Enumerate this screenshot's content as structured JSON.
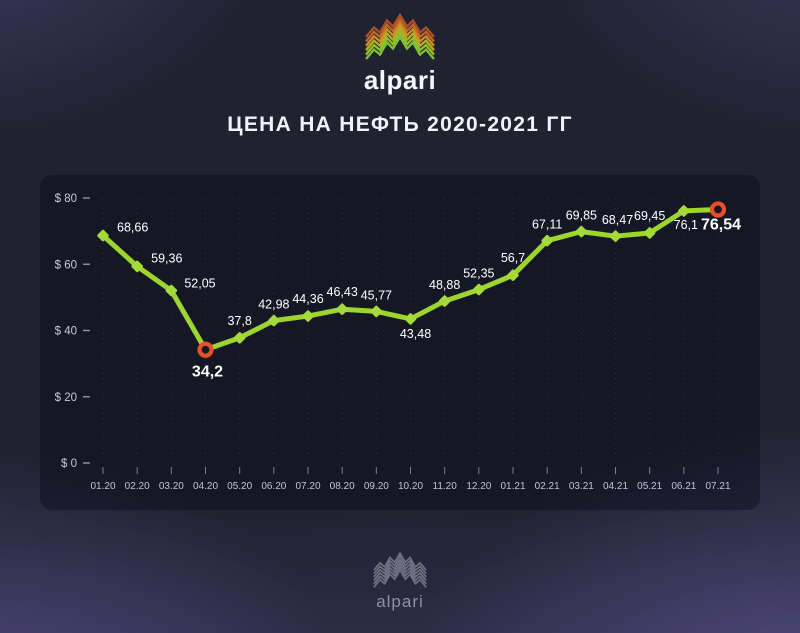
{
  "header": {
    "brand": "alpari"
  },
  "title": "ЦЕНА НА НЕФТЬ 2020-2021 ГГ",
  "footer": {
    "brand": "alpari"
  },
  "brand_colors": {
    "stripes": [
      "#a84e2a",
      "#bf6727",
      "#cb8f26",
      "#b7ad2b",
      "#95bd30",
      "#7cc433"
    ],
    "footer_stripes": [
      "#7c8090",
      "#7c8090",
      "#7c8090",
      "#7c8090",
      "#7c8090",
      "#7c8090"
    ],
    "text": "#f5f6f9",
    "footer_text": "#8d91a0"
  },
  "chart_data": {
    "type": "line",
    "title": "ЦЕНА НА НЕФТЬ 2020-2021 ГГ",
    "xlabel": "",
    "ylabel": "",
    "x": [
      "01.20",
      "02.20",
      "03.20",
      "04.20",
      "05.20",
      "06.20",
      "07.20",
      "08.20",
      "09.20",
      "10.20",
      "11.20",
      "12.20",
      "01.21",
      "02.21",
      "03.21",
      "04.21",
      "05.21",
      "06.21",
      "07.21"
    ],
    "values": [
      68.66,
      59.36,
      52.05,
      34.2,
      37.8,
      42.98,
      44.36,
      46.43,
      45.77,
      43.48,
      48.88,
      52.35,
      56.7,
      67.11,
      69.85,
      68.47,
      69.45,
      76.1,
      76.54
    ],
    "value_labels": [
      "68,66",
      "59,36",
      "52,05",
      "34,2",
      "37,8",
      "42,98",
      "44,36",
      "46,43",
      "45,77",
      "43,48",
      "48,88",
      "52,35",
      "56,7",
      "67,11",
      "69,85",
      "68,47",
      "69,45",
      "76,1",
      "76,54"
    ],
    "ylim": [
      0,
      80
    ],
    "y_ticks": [
      {
        "value": 80,
        "label": "$ 80"
      },
      {
        "value": 60,
        "label": "$ 60"
      },
      {
        "value": 40,
        "label": "$ 40"
      },
      {
        "value": 20,
        "label": "$ 20"
      },
      {
        "value": 0,
        "label": "$ 0"
      }
    ],
    "grid": {
      "vertical": "dotted",
      "horizontal": "faint-dotted"
    },
    "legend_position": "none",
    "styles": {
      "line_color": "#9dd52e",
      "marker_color": "#a4da3a",
      "highlight_ring_color": "#e8502a",
      "highlight_ring_fill": "#151726",
      "label_color": "#ffffff",
      "axis_label_color": "#c6c9d8",
      "tick_color": "rgba(210,214,230,0.55)"
    },
    "highlights": [
      {
        "index": 3,
        "type": "ring",
        "note": "minimum"
      },
      {
        "index": 18,
        "type": "ring",
        "note": "latest"
      }
    ],
    "label_placement": [
      [
        14,
        -4,
        "start"
      ],
      [
        14,
        -4,
        "start"
      ],
      [
        13,
        -3,
        "start"
      ],
      [
        2,
        27,
        "middle"
      ],
      [
        0,
        -13,
        "middle"
      ],
      [
        0,
        -12,
        "middle"
      ],
      [
        0,
        -13,
        "middle"
      ],
      [
        0,
        -13,
        "middle"
      ],
      [
        0,
        -12,
        "middle"
      ],
      [
        5,
        19,
        "middle"
      ],
      [
        0,
        -12,
        "middle"
      ],
      [
        0,
        -12,
        "middle"
      ],
      [
        0,
        -13,
        "middle"
      ],
      [
        0,
        -12,
        "middle"
      ],
      [
        0,
        -12,
        "middle"
      ],
      [
        2,
        -12,
        "middle"
      ],
      [
        0,
        -13,
        "middle"
      ],
      [
        2,
        18,
        "middle"
      ],
      [
        3,
        20,
        "middle"
      ]
    ]
  }
}
